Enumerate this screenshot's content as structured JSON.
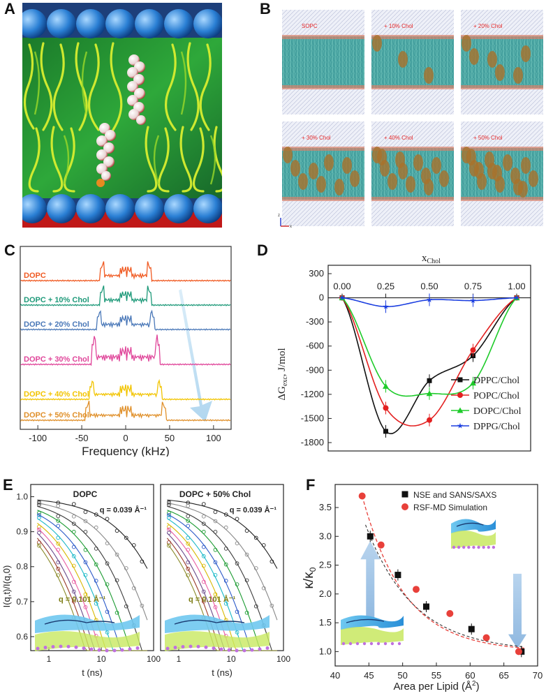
{
  "panels": {
    "A": {
      "label": "A"
    },
    "B": {
      "label": "B",
      "frames": [
        "SOPC",
        "+ 10% Chol",
        "+ 20% Chol",
        "+ 30% Chol",
        "+ 40% Chol",
        "+ 50% Chol"
      ],
      "axis_z": "z",
      "axis_x": "x"
    },
    "C": {
      "label": "C",
      "spectra": [
        "DOPC",
        "DOPC + 10% Chol",
        "DOPC + 20% Chol",
        "DOPC + 30% Chol",
        "DOPC + 40% Chol",
        "DOPC + 50% Chol"
      ],
      "colors": [
        "#f05a22",
        "#1f9a7a",
        "#4a78b8",
        "#e0469a",
        "#f2c400",
        "#e0902a"
      ],
      "xticks": [
        "-100",
        "-50",
        "0",
        "50",
        "100"
      ],
      "xlabel": "Frequency (kHz)"
    },
    "D": {
      "label": "D"
    },
    "E": {
      "label": "E",
      "left_title": "DOPC",
      "right_title": "DOPC + 50% Chol",
      "q_top": "q = 0.039 Å⁻¹",
      "q_bottom": "q = 0.101 Å⁻¹",
      "ylabel": "I(q,t)/I(q,0)",
      "xlabel": "t (ns)",
      "yticks": [
        "1.0",
        "0.9",
        "0.8",
        "0.7",
        "0.6"
      ],
      "xticks": [
        "1",
        "10",
        "100"
      ]
    },
    "F": {
      "label": "F"
    }
  },
  "chart_data": [
    {
      "type": "line",
      "panel": "D",
      "title": "",
      "xlabel": "x_Chol",
      "ylabel": "ΔG_exc, J/mol",
      "xlim": [
        0,
        1
      ],
      "ylim": [
        -1800,
        300
      ],
      "xticks": [
        "0.00",
        "0.25",
        "0.50",
        "0.75",
        "1.00"
      ],
      "yticks": [
        "300",
        "0",
        "-300",
        "-600",
        "-900",
        "-1200",
        "-1500",
        "-1800"
      ],
      "legend_position": "bottom-right",
      "series": [
        {
          "name": "DPPC/Chol",
          "color": "#111111",
          "marker": "square",
          "x": [
            0,
            0.25,
            0.5,
            0.75,
            1.0
          ],
          "values": [
            0,
            -1660,
            -1030,
            -720,
            0
          ]
        },
        {
          "name": "POPC/Chol",
          "color": "#e32020",
          "marker": "circle",
          "x": [
            0,
            0.25,
            0.5,
            0.75,
            1.0
          ],
          "values": [
            0,
            -1370,
            -1520,
            -650,
            0
          ]
        },
        {
          "name": "DOPC/Chol",
          "color": "#1ecb2a",
          "marker": "triangle",
          "x": [
            0,
            0.25,
            0.5,
            0.75,
            1.0
          ],
          "values": [
            0,
            -1100,
            -1190,
            -1060,
            0
          ]
        },
        {
          "name": "DPPG/Chol",
          "color": "#1c3fe0",
          "marker": "star",
          "x": [
            0,
            0.25,
            0.5,
            0.75,
            1.0
          ],
          "values": [
            0,
            -110,
            -25,
            -35,
            0
          ]
        }
      ]
    },
    {
      "type": "scatter",
      "panel": "F",
      "title": "",
      "xlabel": "Area per Lipid (Å²)",
      "ylabel": "κ/κ₀",
      "xlim": [
        40,
        70
      ],
      "ylim": [
        0.75,
        3.9
      ],
      "xticks": [
        "40",
        "45",
        "50",
        "55",
        "60",
        "65",
        "70"
      ],
      "yticks": [
        "1.0",
        "1.5",
        "2.0",
        "2.5",
        "3.0",
        "3.5"
      ],
      "legend_position": "top-right",
      "series": [
        {
          "name": "NSE and SANS/SAXS",
          "color": "#111111",
          "marker": "square",
          "x": [
            45.2,
            49.3,
            53.5,
            60.2,
            67.6
          ],
          "values": [
            3.0,
            2.33,
            1.78,
            1.39,
            1.0
          ]
        },
        {
          "name": "RSF-MD Simulation",
          "color": "#e8403a",
          "marker": "circle",
          "x": [
            44.0,
            46.8,
            52.0,
            57.0,
            62.4,
            67.2
          ],
          "values": [
            3.7,
            2.85,
            2.08,
            1.66,
            1.24,
            1.0
          ]
        }
      ]
    }
  ]
}
